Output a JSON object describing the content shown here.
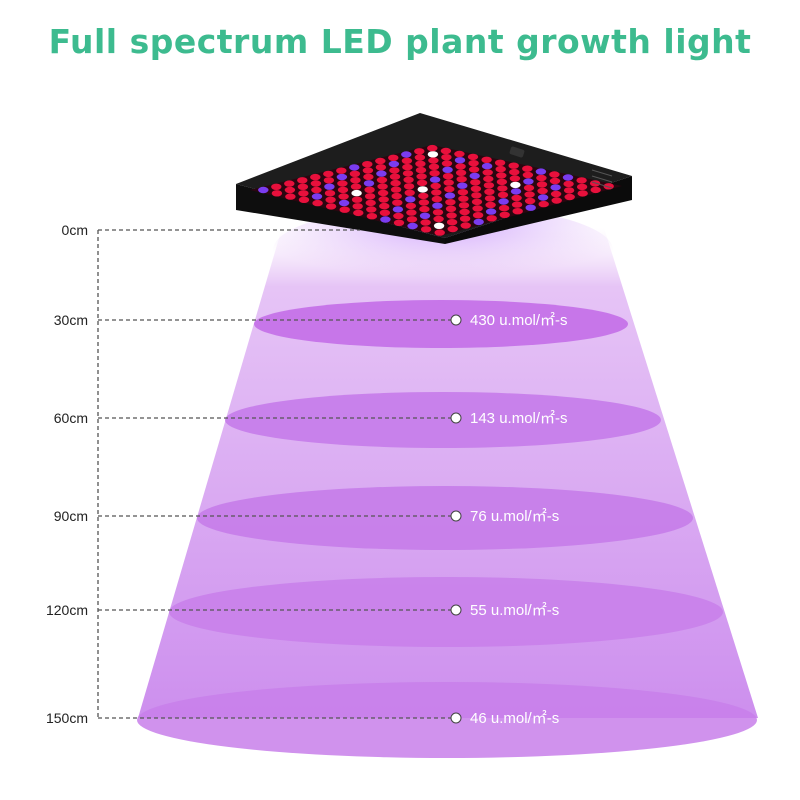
{
  "title": "Full spectrum LED plant growth light",
  "colors": {
    "title": "#3dbb8f",
    "beam": "#d9a8f0",
    "ellipse": "#c36ee8",
    "lamp_body": "#141414",
    "led_red": "#e8103c",
    "led_blue": "#7a3cf0",
    "led_white": "#ffffff",
    "guide_line": "#555555",
    "label_text": "#222222",
    "reading_text": "#ffffff"
  },
  "distance_labels": [
    "0cm",
    "30cm",
    "60cm",
    "90cm",
    "120cm",
    "150cm"
  ],
  "readings": [
    "430 u.mol/㎡-s",
    "143 u.mol/㎡-s",
    "76 u.mol/㎡-s",
    "55 u.mol/㎡-s",
    "46 u.mol/㎡-s"
  ],
  "lamp_icon": "led-grow-panel-icon"
}
